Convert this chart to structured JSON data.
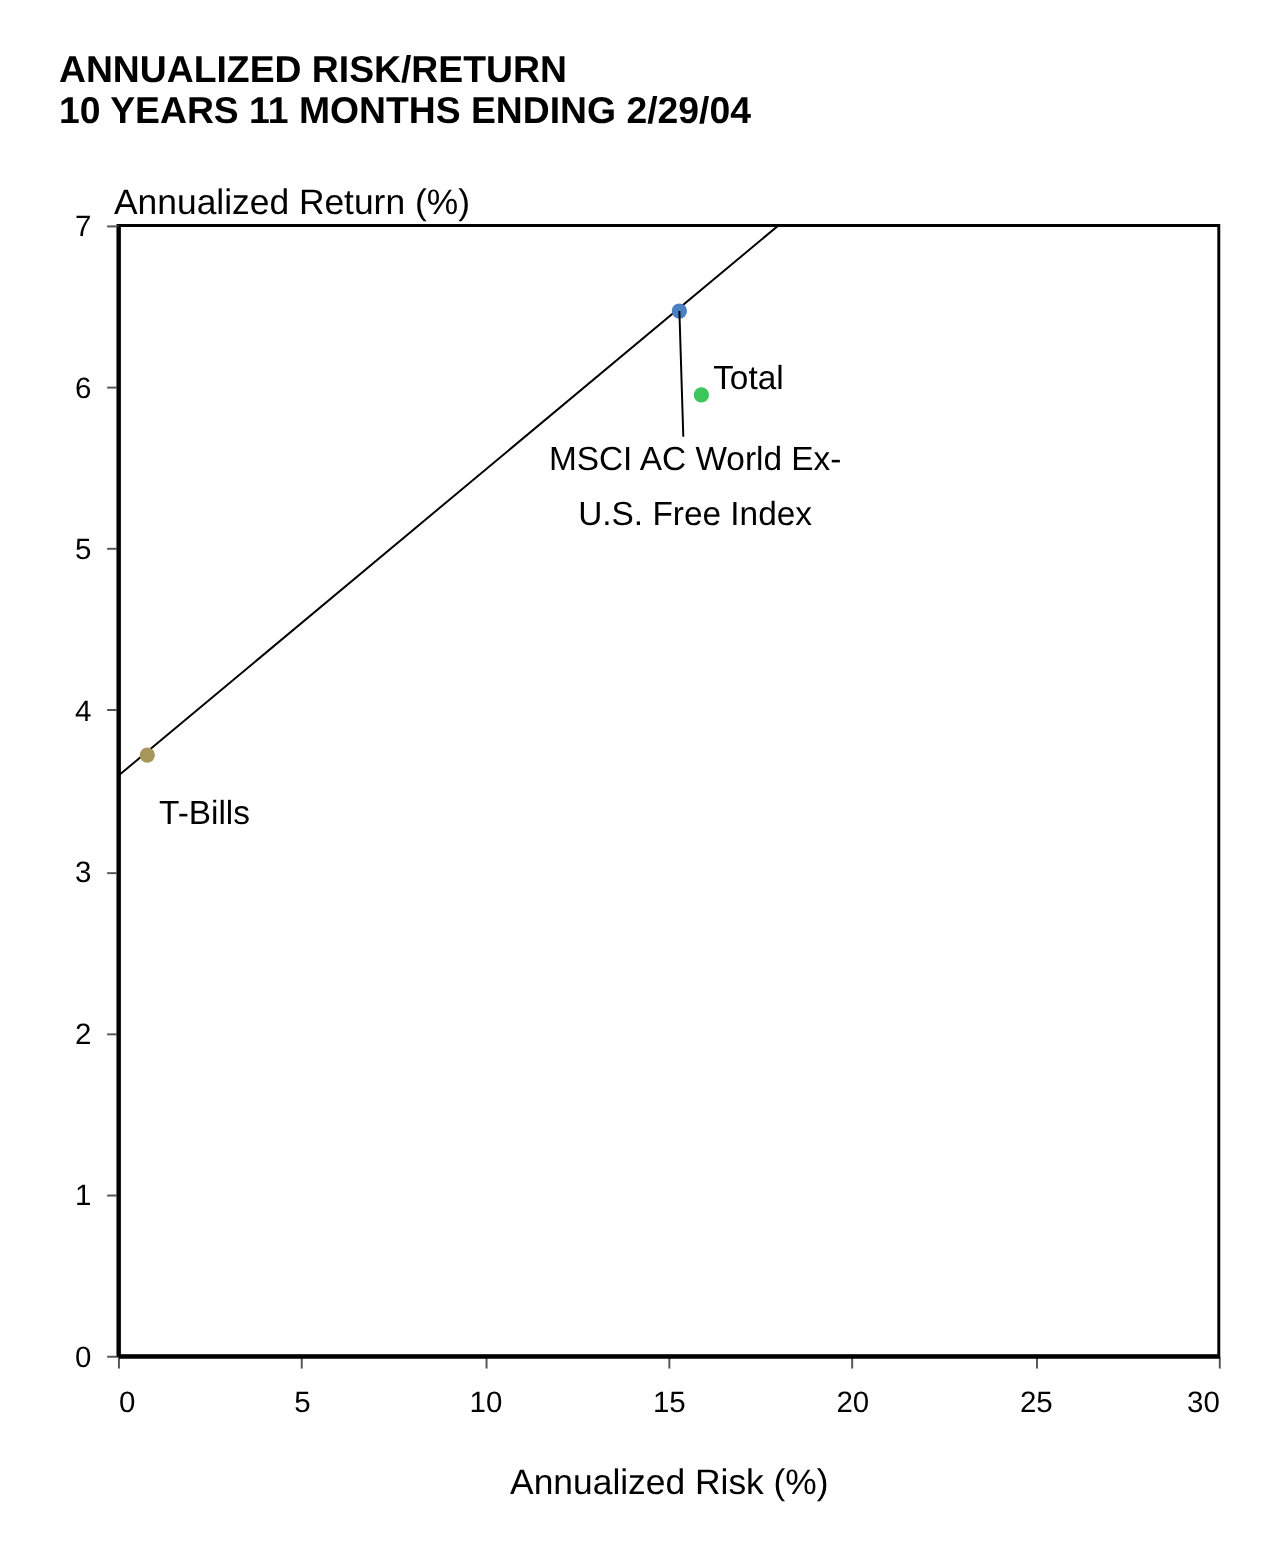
{
  "chart_data": {
    "type": "scatter",
    "title": [
      "ANNUALIZED RISK/RETURN",
      "10 YEARS 11 MONTHS ENDING 2/29/04"
    ],
    "xlabel": "Annualized Risk (%)",
    "ylabel": "Annualized Return (%)",
    "xlim": [
      0,
      30
    ],
    "xticks": [
      0,
      5,
      10,
      15,
      20,
      25,
      30
    ],
    "ylim": [
      0,
      7
    ],
    "yticks": [
      0,
      1,
      2,
      3,
      4,
      5,
      6,
      7
    ],
    "grid": false,
    "marker": "circle",
    "series": [
      {
        "type": "line",
        "color": "#000000",
        "marker": "none",
        "line_style": "solid",
        "x": [
          0,
          18.0
        ],
        "values": [
          3.59,
          7
        ]
      },
      {
        "name": "Total",
        "color": "#3cc65a",
        "x": [
          15.9
        ],
        "values": [
          5.95
        ]
      },
      {
        "name": "MSCI AC World Ex-\nU.S. Free Index",
        "color": "#4a7fc0",
        "x": [
          15.3
        ],
        "values": [
          6.47
        ]
      },
      {
        "name": "T-Bills",
        "color": "#a8955a",
        "x": [
          0.8
        ],
        "values": [
          3.72
        ]
      }
    ]
  }
}
